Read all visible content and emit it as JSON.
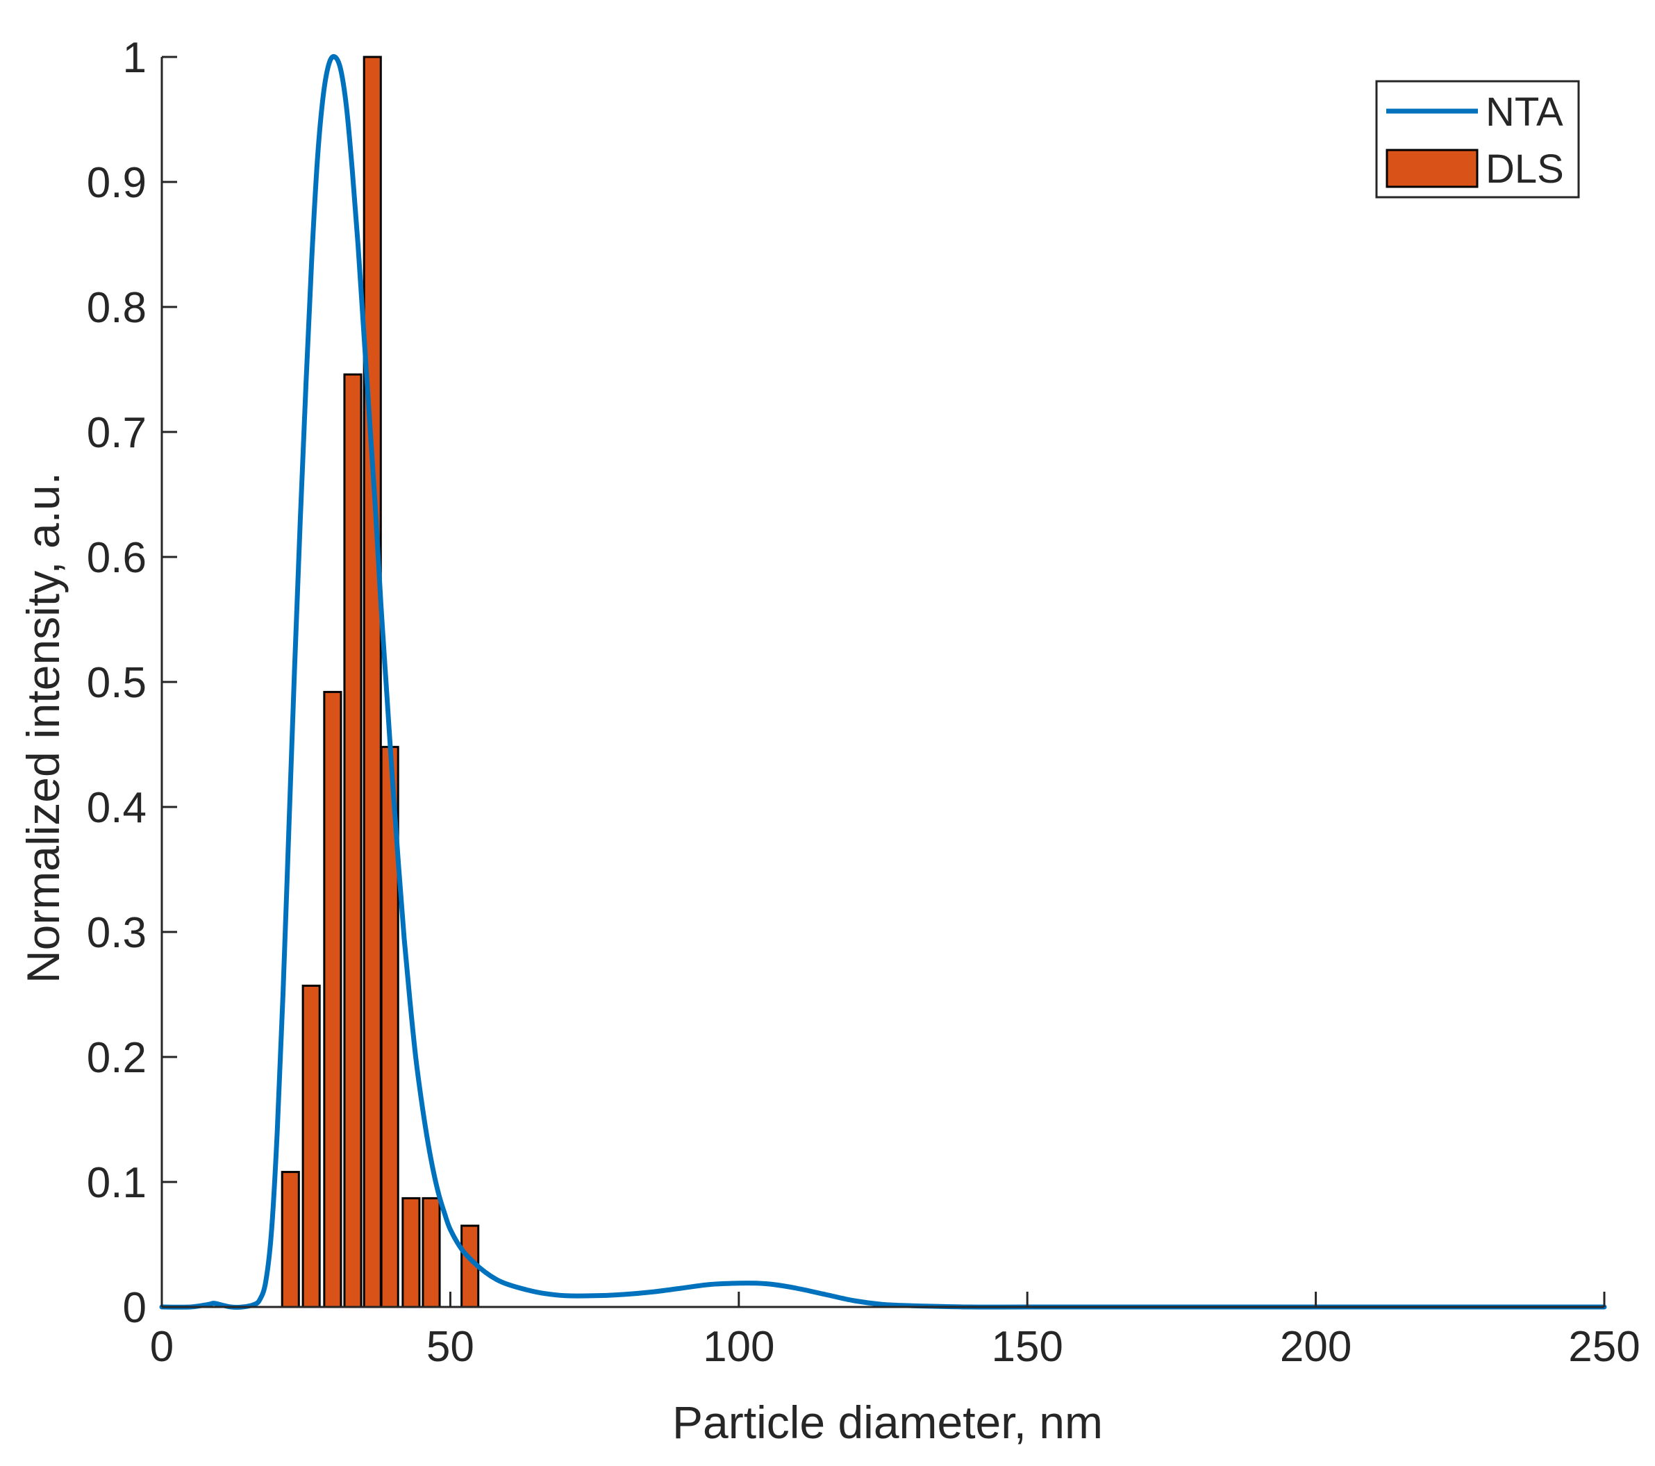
{
  "chart_data": {
    "type": "bar",
    "title": "",
    "xlabel": "Particle diameter, nm",
    "ylabel": "Normalized intensity, a.u.",
    "xlim": [
      0,
      250
    ],
    "ylim": [
      0,
      1
    ],
    "xticks": [
      0,
      50,
      100,
      150,
      200,
      250
    ],
    "xtick_labels": [
      "0",
      "50",
      "100",
      "150",
      "200",
      "250"
    ],
    "yticks": [
      0,
      0.1,
      0.2,
      0.3,
      0.4,
      0.5,
      0.6,
      0.7,
      0.8,
      0.9,
      1
    ],
    "ytick_labels": [
      "0",
      "0.1",
      "0.2",
      "0.3",
      "0.4",
      "0.5",
      "0.6",
      "0.7",
      "0.8",
      "0.9",
      "1"
    ],
    "grid": false,
    "legend_position": "top-right",
    "series": [
      {
        "name": "NTA",
        "kind": "line",
        "color": "#0072BD",
        "x": [
          0,
          5,
          8,
          9,
          10,
          12,
          14,
          16,
          17,
          18,
          19,
          20,
          21,
          22,
          23,
          24,
          25,
          26,
          27,
          28,
          29,
          30,
          31,
          32,
          33,
          34,
          35,
          36,
          37,
          38,
          39,
          40,
          41,
          42,
          43,
          44,
          45,
          46,
          47,
          48,
          49,
          50,
          52,
          54,
          56,
          58,
          60,
          63,
          66,
          70,
          75,
          80,
          85,
          90,
          95,
          100,
          103,
          106,
          110,
          115,
          120,
          125,
          130,
          140,
          150,
          175,
          200,
          250
        ],
        "y": [
          0,
          0,
          0.002,
          0.003,
          0.002,
          0,
          0,
          0.002,
          0.006,
          0.02,
          0.06,
          0.14,
          0.25,
          0.38,
          0.51,
          0.63,
          0.74,
          0.84,
          0.92,
          0.97,
          0.995,
          1.0,
          0.99,
          0.96,
          0.91,
          0.85,
          0.78,
          0.71,
          0.64,
          0.56,
          0.49,
          0.42,
          0.355,
          0.295,
          0.245,
          0.2,
          0.165,
          0.135,
          0.11,
          0.09,
          0.075,
          0.062,
          0.046,
          0.036,
          0.028,
          0.022,
          0.018,
          0.014,
          0.011,
          0.009,
          0.009,
          0.01,
          0.012,
          0.015,
          0.018,
          0.019,
          0.019,
          0.018,
          0.015,
          0.01,
          0.005,
          0.002,
          0.001,
          0,
          0,
          0,
          0,
          0
        ]
      },
      {
        "name": "DLS",
        "kind": "bar",
        "color": "#D95319",
        "x": [
          22.3,
          25.9,
          29.6,
          33.1,
          36.5,
          39.5,
          43.2,
          46.7,
          53.4
        ],
        "values": [
          0.108,
          0.257,
          0.492,
          0.746,
          1.0,
          0.448,
          0.087,
          0.087,
          0.065
        ],
        "bar_width": 2.9
      }
    ]
  }
}
